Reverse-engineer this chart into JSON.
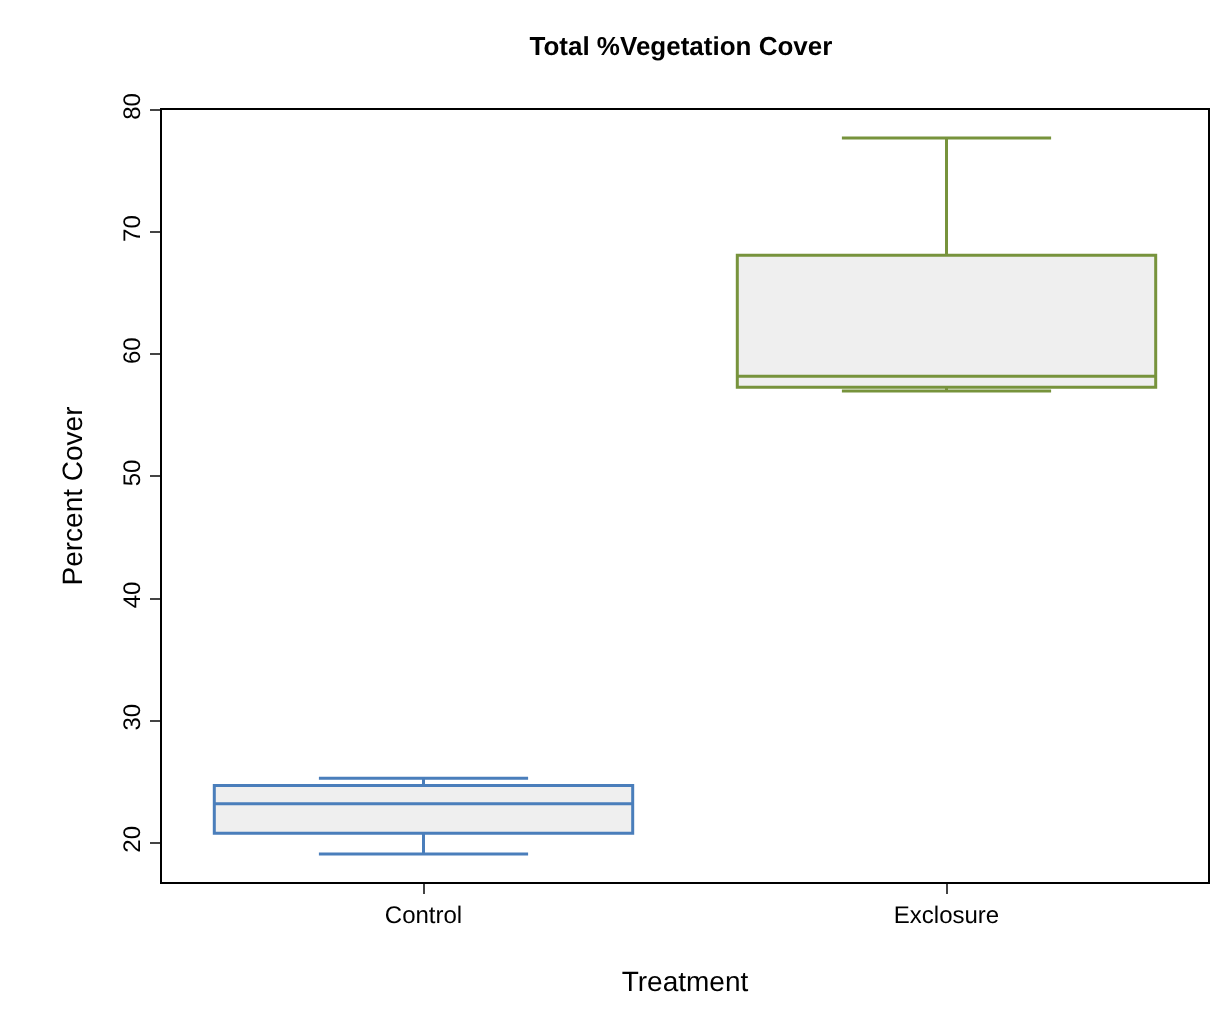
{
  "chart_data": {
    "type": "box",
    "title": "Total %Vegetation Cover",
    "xlabel": "Treatment",
    "ylabel": "Percent Cover",
    "categories": [
      "Control",
      "Exclosure"
    ],
    "series": [
      {
        "color": "#4a7ebb",
        "boxes": [
          {
            "low": 19.1,
            "q1": 20.8,
            "median": 23.2,
            "q3": 24.7,
            "high": 25.3
          },
          null
        ]
      },
      {
        "color": "#77933c",
        "boxes": [
          null,
          {
            "low": 57.0,
            "q1": 57.3,
            "median": 58.2,
            "q3": 68.1,
            "high": 77.7
          }
        ]
      }
    ],
    "ylim": [
      16.8,
      80
    ],
    "yticks": [
      20,
      30,
      40,
      50,
      60,
      70,
      80
    ]
  }
}
